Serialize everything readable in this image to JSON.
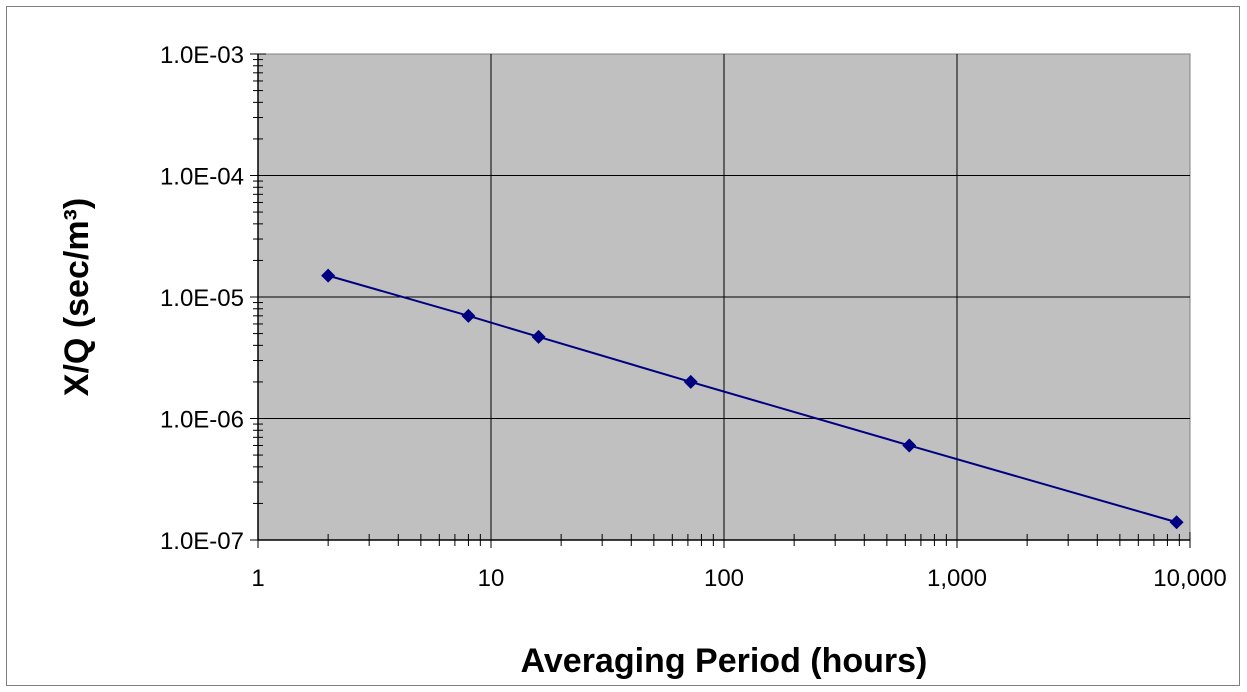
{
  "chart_data": {
    "type": "line",
    "title": "",
    "xlabel": "Averaging Period (hours)",
    "ylabel": "X/Q (sec/m³)",
    "x_scale": "log",
    "y_scale": "log",
    "xlim": [
      1,
      10000
    ],
    "ylim": [
      1e-07,
      0.001
    ],
    "x_tick_labels": [
      "1",
      "10",
      "100",
      "1,000",
      "10,000"
    ],
    "y_tick_labels": [
      "1.0E-07",
      "1.0E-06",
      "1.0E-05",
      "1.0E-04",
      "1.0E-03"
    ],
    "grid": true,
    "legend": "none",
    "series": [
      {
        "x": [
          2,
          8,
          16,
          72,
          624,
          8760
        ],
        "y": [
          1.5e-05,
          7e-06,
          4.7e-06,
          2e-06,
          6e-07,
          1.4e-07
        ],
        "color": "#000080",
        "marker": "diamond"
      }
    ],
    "plot_background": "#c0c0c0",
    "gridline_color": "#000000"
  }
}
